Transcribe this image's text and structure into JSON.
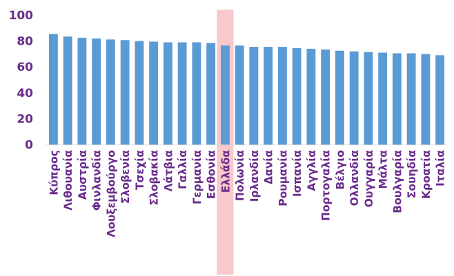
{
  "chart_data": {
    "type": "bar",
    "title": "",
    "xlabel": "",
    "ylabel": "",
    "ylim": [
      0,
      100
    ],
    "yticks": [
      "0",
      "20",
      "40",
      "60",
      "80",
      "100"
    ],
    "grid": false,
    "legend": "none",
    "categories": [
      "Κύπρος",
      "Λιθουανία",
      "Αυστρία",
      "Φινλανδία",
      "Λουξεμβούργο",
      "Σλοβενία",
      "Τσεχία",
      "Σλοβακία",
      "Λάτβια",
      "Γαλλία",
      "Γερμανία",
      "Εσθονία",
      "Ελλάδα",
      "Πολωνία",
      "Ιρλανδία",
      "Δανία",
      "Ρουμανία",
      "Ισπανία",
      "Αγγλία",
      "Πορτογαλία",
      "Βέλγιο",
      "Ολλανδία",
      "Ουγγαρία",
      "Μάλτα",
      "Βουλγαρία",
      "Σουηδία",
      "Κροατία",
      "Ιταλία"
    ],
    "values": [
      85.5,
      83.5,
      82.5,
      82,
      81.2,
      80.7,
      80,
      79.5,
      79,
      79,
      79,
      78.5,
      76.5,
      76.5,
      75.5,
      75.5,
      75.5,
      74.5,
      74,
      73.5,
      72.5,
      72,
      71.5,
      71,
      70.5,
      70.5,
      70,
      69
    ],
    "highlight_category": "Ελλάδα",
    "colors": {
      "bar": "#5b9bd5",
      "label": "#6a2c8c",
      "highlight": "#f4a3a8"
    }
  }
}
